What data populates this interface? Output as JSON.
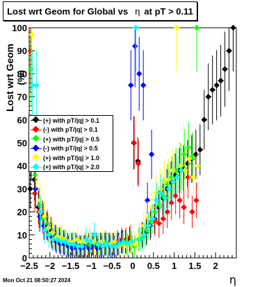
{
  "title": {
    "text": "Lost wrt Geom for Global vs",
    "eta": "η",
    "suffix": "at pT > 0.11"
  },
  "datestamp": "Mon Oct 21 08:50:27 2024",
  "chart_data": {
    "type": "scatter",
    "title": "Lost wrt Geom for Global vs η at pT > 0.11",
    "xlabel": "η",
    "ylabel": "Lost wrt Geom (%)",
    "xlim": [
      -2.5,
      2.5
    ],
    "ylim": [
      0,
      100
    ],
    "xticks": [
      "−2.5",
      "−2",
      "−1.5",
      "−1",
      "−0.5",
      "0",
      "0.5",
      "1",
      "1.5",
      "2"
    ],
    "yticks": [
      "0",
      "10",
      "20",
      "30",
      "40",
      "50",
      "60",
      "70",
      "80",
      "90",
      "100"
    ],
    "legend_position": "left-middle",
    "series": [
      {
        "name": "(+) with pT/|q| > 0.1",
        "color": "#000000",
        "points": [
          [
            -2.45,
            30
          ],
          [
            -2.35,
            34
          ],
          [
            -2.25,
            22
          ],
          [
            -2.15,
            18
          ],
          [
            -2.05,
            14
          ],
          [
            -1.95,
            12
          ],
          [
            -1.85,
            9
          ],
          [
            -1.75,
            8
          ],
          [
            -1.65,
            7
          ],
          [
            -1.55,
            6
          ],
          [
            -1.45,
            6
          ],
          [
            -1.35,
            6
          ],
          [
            -1.25,
            5
          ],
          [
            -1.15,
            5
          ],
          [
            -1.05,
            5
          ],
          [
            -0.95,
            6
          ],
          [
            -0.85,
            6
          ],
          [
            -0.75,
            6
          ],
          [
            -0.65,
            6
          ],
          [
            -0.55,
            6
          ],
          [
            -0.45,
            6
          ],
          [
            -0.35,
            6
          ],
          [
            -0.25,
            7
          ],
          [
            -0.15,
            7
          ],
          [
            -0.05,
            8
          ],
          [
            0.05,
            50
          ],
          [
            0.15,
            42
          ],
          [
            0.25,
            10
          ],
          [
            0.35,
            11
          ],
          [
            0.45,
            14
          ],
          [
            0.55,
            17
          ],
          [
            0.65,
            22
          ],
          [
            0.75,
            26
          ],
          [
            0.85,
            30
          ],
          [
            0.95,
            33
          ],
          [
            1.05,
            36
          ],
          [
            1.15,
            38
          ],
          [
            1.25,
            39
          ],
          [
            1.35,
            41
          ],
          [
            1.45,
            43
          ],
          [
            1.55,
            45
          ],
          [
            1.65,
            47
          ],
          [
            1.75,
            60
          ],
          [
            1.85,
            70
          ],
          [
            1.95,
            73
          ],
          [
            2.05,
            75
          ],
          [
            2.15,
            77
          ],
          [
            2.25,
            82
          ],
          [
            2.35,
            90
          ],
          [
            2.45,
            100
          ]
        ]
      },
      {
        "name": "(-) with pT/|q| > 0.1",
        "color": "#ff0000",
        "points": [
          [
            -2.45,
            90
          ],
          [
            -2.35,
            28
          ],
          [
            -2.25,
            20
          ],
          [
            -2.15,
            17
          ],
          [
            -2.05,
            14
          ],
          [
            -1.95,
            10
          ],
          [
            -1.85,
            8
          ],
          [
            -1.75,
            7
          ],
          [
            -1.65,
            6
          ],
          [
            -1.55,
            5
          ],
          [
            -1.45,
            5
          ],
          [
            -1.35,
            5
          ],
          [
            -1.25,
            5
          ],
          [
            -1.15,
            5
          ],
          [
            -1.05,
            6
          ],
          [
            -0.95,
            6
          ],
          [
            -0.85,
            5
          ],
          [
            -0.75,
            5
          ],
          [
            -0.65,
            6
          ],
          [
            -0.55,
            6
          ],
          [
            -0.45,
            6
          ],
          [
            -0.35,
            7
          ],
          [
            -0.25,
            8
          ],
          [
            -0.15,
            8
          ],
          [
            -0.05,
            9
          ],
          [
            0.05,
            50
          ],
          [
            0.15,
            41
          ],
          [
            0.25,
            10
          ],
          [
            0.35,
            12
          ],
          [
            0.45,
            15
          ],
          [
            0.55,
            16
          ],
          [
            0.65,
            15
          ],
          [
            0.75,
            17
          ],
          [
            0.85,
            20
          ],
          [
            0.95,
            24
          ],
          [
            1.05,
            27
          ],
          [
            1.15,
            25
          ],
          [
            1.25,
            22
          ],
          [
            1.35,
            35
          ],
          [
            1.45,
            20
          ],
          [
            1.55,
            25
          ]
        ]
      },
      {
        "name": "(+) with pT/|q| > 0.5",
        "color": "#00ff00",
        "points": [
          [
            -2.45,
            82
          ],
          [
            -2.35,
            36
          ],
          [
            -2.25,
            23
          ],
          [
            -2.15,
            17
          ],
          [
            -2.05,
            15
          ],
          [
            -1.95,
            10
          ],
          [
            -1.85,
            9
          ],
          [
            -1.75,
            8
          ],
          [
            -1.65,
            7
          ],
          [
            -1.55,
            5
          ],
          [
            -1.45,
            6
          ],
          [
            -1.35,
            5
          ],
          [
            -1.25,
            5
          ],
          [
            -1.15,
            6
          ],
          [
            -1.05,
            5
          ],
          [
            -0.95,
            6
          ],
          [
            -0.85,
            5
          ],
          [
            -0.75,
            6
          ],
          [
            -0.65,
            7
          ],
          [
            -0.55,
            6
          ],
          [
            -0.45,
            5
          ],
          [
            -0.35,
            6
          ],
          [
            -0.25,
            7
          ],
          [
            -0.15,
            6
          ],
          [
            -0.05,
            7
          ],
          [
            0.05,
            5
          ],
          [
            0.15,
            8
          ],
          [
            0.25,
            9
          ],
          [
            0.35,
            12
          ],
          [
            0.45,
            16
          ],
          [
            0.55,
            20
          ],
          [
            0.65,
            23
          ],
          [
            0.75,
            27
          ],
          [
            0.85,
            32
          ],
          [
            0.95,
            35
          ],
          [
            1.05,
            38
          ],
          [
            1.15,
            40
          ],
          [
            1.25,
            45
          ],
          [
            1.35,
            48
          ],
          [
            1.45,
            44
          ],
          [
            1.55,
            100
          ]
        ]
      },
      {
        "name": "(-) with pT/|q| > 0.5",
        "color": "#0000ff",
        "points": [
          [
            -2.45,
            44
          ],
          [
            -2.35,
            30
          ],
          [
            -2.25,
            18
          ],
          [
            -2.15,
            14
          ],
          [
            -2.05,
            13
          ],
          [
            -1.95,
            9
          ],
          [
            -1.85,
            7
          ],
          [
            -1.75,
            6
          ],
          [
            -1.65,
            6
          ],
          [
            -1.55,
            5
          ],
          [
            -1.45,
            4
          ],
          [
            -1.35,
            5
          ],
          [
            -1.25,
            4
          ],
          [
            -1.15,
            5
          ],
          [
            -1.05,
            4
          ],
          [
            -0.95,
            5
          ],
          [
            -0.85,
            4
          ],
          [
            -0.75,
            5
          ],
          [
            -0.65,
            6
          ],
          [
            -0.55,
            5
          ],
          [
            -0.45,
            5
          ],
          [
            -0.35,
            6
          ],
          [
            -0.25,
            7
          ],
          [
            -0.05,
            75
          ],
          [
            0.05,
            92
          ],
          [
            0.15,
            80
          ],
          [
            0.25,
            75
          ],
          [
            0.35,
            25
          ],
          [
            0.45,
            45
          ]
        ]
      },
      {
        "name": "(+) with pT/|q| > 1.0",
        "color": "#ffff00",
        "points": [
          [
            -2.45,
            97
          ],
          [
            -2.35,
            40
          ],
          [
            -2.25,
            25
          ],
          [
            -2.15,
            18
          ],
          [
            -2.05,
            13
          ],
          [
            -1.95,
            11
          ],
          [
            -1.85,
            9
          ],
          [
            -1.75,
            9
          ],
          [
            -1.65,
            8
          ],
          [
            -1.55,
            7
          ],
          [
            -1.45,
            7
          ],
          [
            -1.35,
            8
          ],
          [
            -1.25,
            7
          ],
          [
            -1.15,
            7
          ],
          [
            -1.05,
            8
          ],
          [
            -0.95,
            7
          ],
          [
            -0.85,
            6
          ],
          [
            -0.75,
            7
          ],
          [
            -0.65,
            6
          ],
          [
            -0.55,
            6
          ],
          [
            -0.45,
            7
          ],
          [
            -0.35,
            5
          ],
          [
            -0.25,
            6
          ],
          [
            -0.15,
            5
          ],
          [
            -0.05,
            6
          ],
          [
            0.05,
            6
          ],
          [
            0.15,
            10
          ],
          [
            0.25,
            14
          ],
          [
            0.35,
            18
          ],
          [
            0.45,
            22
          ],
          [
            0.55,
            28
          ],
          [
            0.65,
            30
          ],
          [
            0.75,
            33
          ],
          [
            0.85,
            34
          ],
          [
            0.95,
            38
          ],
          [
            1.05,
            100
          ],
          [
            1.15,
            40
          ],
          [
            1.25,
            38
          ],
          [
            1.35,
            43
          ],
          [
            1.45,
            35
          ],
          [
            1.55,
            40
          ]
        ]
      },
      {
        "name": "(+) with pT/|q| > 2.0",
        "color": "#00ffff",
        "points": [
          [
            -2.45,
            75
          ],
          [
            -2.35,
            75
          ],
          [
            -2.25,
            20
          ],
          [
            -2.15,
            12
          ],
          [
            -2.05,
            10
          ],
          [
            -1.95,
            8
          ],
          [
            -1.85,
            8
          ],
          [
            -1.75,
            7
          ],
          [
            -1.65,
            7
          ],
          [
            -1.55,
            6
          ],
          [
            -1.45,
            6
          ],
          [
            -1.35,
            5
          ],
          [
            -1.25,
            5
          ],
          [
            -1.15,
            8
          ],
          [
            -1.05,
            7
          ],
          [
            -0.95,
            10
          ],
          [
            -0.85,
            6
          ],
          [
            -0.75,
            5
          ],
          [
            -0.65,
            6
          ],
          [
            -0.55,
            5
          ],
          [
            -0.45,
            5
          ],
          [
            -0.35,
            6
          ],
          [
            -0.25,
            7
          ],
          [
            -0.15,
            6
          ],
          [
            -0.05,
            7
          ],
          [
            0.05,
            100
          ],
          [
            0.15,
            8
          ],
          [
            0.25,
            10
          ],
          [
            0.35,
            14
          ],
          [
            0.45,
            17
          ],
          [
            0.55,
            25
          ],
          [
            0.65,
            28
          ],
          [
            0.75,
            26
          ],
          [
            0.85,
            30
          ],
          [
            0.95,
            33
          ],
          [
            1.05,
            35
          ],
          [
            1.15,
            38
          ]
        ]
      }
    ]
  }
}
